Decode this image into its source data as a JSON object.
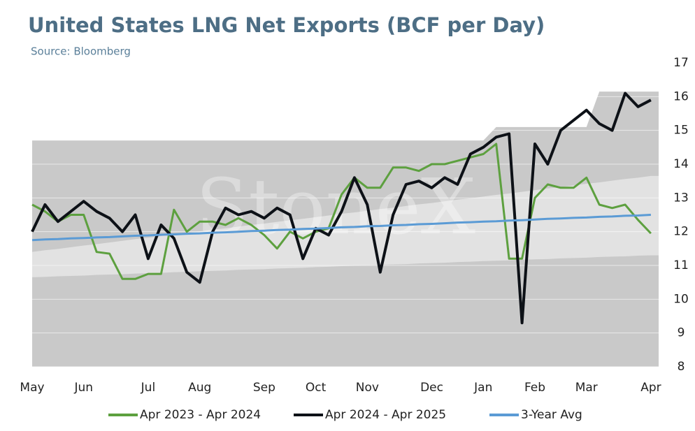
{
  "chart_data": {
    "type": "line",
    "title": "United States LNG Net Exports (BCF per Day)",
    "subtitle": "Source: Bloomberg",
    "watermark": "StoneX",
    "categories": [
      "May",
      null,
      null,
      null,
      "Jun",
      null,
      null,
      null,
      null,
      "Jul",
      null,
      null,
      null,
      "Aug",
      null,
      null,
      null,
      null,
      "Sep",
      null,
      null,
      null,
      "Oct",
      null,
      null,
      null,
      "Nov",
      null,
      null,
      null,
      null,
      "Dec",
      null,
      null,
      null,
      "Jan",
      null,
      null,
      null,
      "Feb",
      null,
      null,
      null,
      "Mar",
      null,
      null,
      null,
      null,
      "Apr"
    ],
    "ylim": [
      8,
      17
    ],
    "yticks": [
      8,
      9,
      10,
      11,
      12,
      13,
      14,
      15,
      16,
      17
    ],
    "grid": true,
    "legend": "bottom",
    "bands": [
      {
        "color": "#c9c9c9",
        "high": [
          14.7,
          14.7,
          14.7,
          14.7,
          14.7,
          14.7,
          14.7,
          14.7,
          14.7,
          14.7,
          14.7,
          14.7,
          14.7,
          14.7,
          14.7,
          14.7,
          14.7,
          14.7,
          14.7,
          14.7,
          14.7,
          14.7,
          14.7,
          14.7,
          14.7,
          14.7,
          14.7,
          14.7,
          14.7,
          14.7,
          14.7,
          14.7,
          14.7,
          14.7,
          14.7,
          14.7,
          15.1,
          15.1,
          15.1,
          15.1,
          15.1,
          15.1,
          15.1,
          15.1,
          16.15,
          16.15,
          16.15,
          16.15,
          16.15
        ]
      },
      {
        "color": "#e2e2e2",
        "low": [
          10.65,
          10.66,
          10.68,
          10.69,
          10.7,
          10.72,
          10.73,
          10.74,
          10.76,
          10.77,
          10.78,
          10.8,
          10.81,
          10.83,
          10.84,
          10.85,
          10.87,
          10.88,
          10.89,
          10.91,
          10.92,
          10.93,
          10.95,
          10.96,
          10.98,
          10.99,
          11.0,
          11.02,
          11.03,
          11.04,
          11.06,
          11.07,
          11.08,
          11.1,
          11.11,
          11.13,
          11.14,
          11.15,
          11.17,
          11.18,
          11.19,
          11.21,
          11.22,
          11.23,
          11.25,
          11.26,
          11.27,
          11.29,
          11.3
        ],
        "high": [
          11.4,
          11.45,
          11.49,
          11.54,
          11.59,
          11.63,
          11.68,
          11.73,
          11.78,
          11.82,
          11.87,
          11.92,
          11.96,
          12.01,
          12.06,
          12.1,
          12.15,
          12.2,
          12.24,
          12.29,
          12.34,
          12.38,
          12.43,
          12.48,
          12.53,
          12.57,
          12.62,
          12.67,
          12.71,
          12.76,
          12.81,
          12.85,
          12.9,
          12.95,
          12.99,
          13.04,
          13.09,
          13.13,
          13.18,
          13.23,
          13.28,
          13.32,
          13.37,
          13.42,
          13.46,
          13.51,
          13.56,
          13.6,
          13.65
        ]
      }
    ],
    "series": [
      {
        "name": "Apr 2023 - Apr 2024",
        "color": "#5da03f",
        "values": [
          12.8,
          12.6,
          12.3,
          12.5,
          12.5,
          11.4,
          11.35,
          10.6,
          10.6,
          10.75,
          10.75,
          12.65,
          12.0,
          12.3,
          12.3,
          12.2,
          12.4,
          12.2,
          11.9,
          11.5,
          12.0,
          11.8,
          12.0,
          12.1,
          13.1,
          13.6,
          13.3,
          13.3,
          13.9,
          13.9,
          13.8,
          14.0,
          14.0,
          14.1,
          14.2,
          14.3,
          14.6,
          11.2,
          11.2,
          13.0,
          13.4,
          13.3,
          13.3,
          13.6,
          12.8,
          12.7,
          12.8,
          12.35,
          11.95
        ]
      },
      {
        "name": "Apr 2024 - Apr 2025",
        "color": "#0d1117",
        "values": [
          12.0,
          12.8,
          12.3,
          12.6,
          12.9,
          12.6,
          12.4,
          12.0,
          12.5,
          11.2,
          12.2,
          11.8,
          10.8,
          10.5,
          12.0,
          12.7,
          12.5,
          12.6,
          12.4,
          12.7,
          12.5,
          11.2,
          12.1,
          11.9,
          12.6,
          13.6,
          12.8,
          10.8,
          12.5,
          13.4,
          13.5,
          13.3,
          13.6,
          13.4,
          14.3,
          14.5,
          14.8,
          14.9,
          9.3,
          14.6,
          14.0,
          15.0,
          15.3,
          15.6,
          15.2,
          15.0,
          16.1,
          15.7,
          15.9
        ]
      },
      {
        "name": "3-Year Avg",
        "color": "#5b9bd5",
        "values": [
          11.75,
          11.77,
          11.78,
          11.8,
          11.81,
          11.83,
          11.84,
          11.86,
          11.88,
          11.89,
          11.91,
          11.92,
          11.94,
          11.95,
          11.97,
          11.98,
          12.0,
          12.02,
          12.03,
          12.05,
          12.06,
          12.08,
          12.09,
          12.11,
          12.13,
          12.14,
          12.16,
          12.17,
          12.19,
          12.2,
          12.22,
          12.23,
          12.25,
          12.27,
          12.28,
          12.3,
          12.31,
          12.33,
          12.34,
          12.36,
          12.38,
          12.39,
          12.41,
          12.42,
          12.44,
          12.45,
          12.47,
          12.48,
          12.5
        ]
      }
    ]
  }
}
